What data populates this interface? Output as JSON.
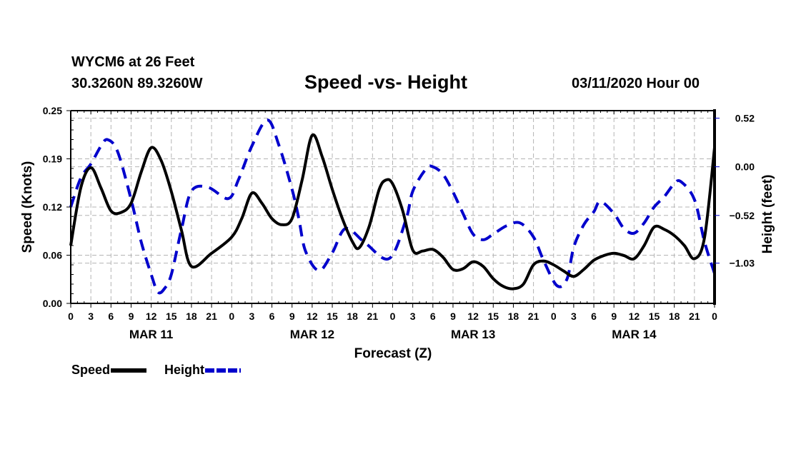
{
  "header": {
    "station": "WYCM6 at 26 Feet",
    "coords": "30.3260N 89.3260W",
    "title": "Speed -vs- Height",
    "datestamp": "03/11/2020 Hour 00"
  },
  "colors": {
    "speed": "#000000",
    "height": "#0000cc",
    "grid": "#b4b4b4"
  },
  "chart_data": {
    "type": "line",
    "title": "Speed -vs- Height",
    "xlabel": "Forecast (Z)",
    "ylabel": "Speed (Knots)",
    "y2label": "Height (feet)",
    "x_unit": "forecast hours from 03/11/2020 00Z",
    "xlim": [
      0,
      96
    ],
    "ylim": [
      0,
      0.25
    ],
    "y2lim": [
      -1.46,
      0.6
    ],
    "grid": true,
    "legend_position": "bottom-left",
    "x_tick_labels": [
      "0",
      "3",
      "6",
      "9",
      "12",
      "15",
      "18",
      "21",
      "0",
      "3",
      "6",
      "9",
      "12",
      "15",
      "18",
      "21",
      "0",
      "3",
      "6",
      "9",
      "12",
      "15",
      "18",
      "21",
      "0",
      "3",
      "6",
      "9",
      "12",
      "15",
      "18",
      "21",
      "0"
    ],
    "x_day_labels": [
      {
        "label": "MAR 11",
        "hour": 12
      },
      {
        "label": "MAR 12",
        "hour": 36
      },
      {
        "label": "MAR 13",
        "hour": 60
      },
      {
        "label": "MAR 14",
        "hour": 84
      }
    ],
    "y_ticks": [
      {
        "value": 0,
        "label": "0.00"
      },
      {
        "value": 0.0625,
        "label": "0.06"
      },
      {
        "value": 0.125,
        "label": "0.12"
      },
      {
        "value": 0.1875,
        "label": "0.19"
      },
      {
        "value": 0.25,
        "label": "0.25"
      }
    ],
    "y2_ticks": [
      {
        "value": 0.52,
        "label": "0.52"
      },
      {
        "value": 0.0,
        "label": "0.00"
      },
      {
        "value": -0.52,
        "label": "−0.52"
      },
      {
        "value": -1.03,
        "label": "−1.03"
      }
    ],
    "series": [
      {
        "name": "Speed",
        "axis": "left",
        "style": "solid",
        "x": [
          0,
          1.5,
          3,
          4.5,
          6,
          7.5,
          9,
          10.5,
          12,
          13.5,
          15,
          16.5,
          18,
          21,
          24,
          25.5,
          27,
          28.5,
          30,
          31.5,
          33,
          34.5,
          36,
          37.5,
          39,
          40.5,
          42,
          43,
          44.5,
          46,
          47,
          48,
          49.5,
          51,
          52.5,
          54,
          55.5,
          57,
          58.5,
          60,
          61.5,
          63,
          64.5,
          66,
          67.5,
          69,
          70.5,
          72,
          73.5,
          75,
          76.5,
          78,
          79.5,
          81,
          82.5,
          84,
          85.5,
          87,
          88.5,
          90,
          91.5,
          93,
          94.5,
          96
        ],
        "values": [
          0.075,
          0.15,
          0.176,
          0.15,
          0.12,
          0.118,
          0.13,
          0.17,
          0.202,
          0.185,
          0.145,
          0.095,
          0.048,
          0.065,
          0.086,
          0.11,
          0.143,
          0.13,
          0.11,
          0.102,
          0.11,
          0.16,
          0.218,
          0.19,
          0.148,
          0.11,
          0.08,
          0.072,
          0.1,
          0.148,
          0.16,
          0.155,
          0.12,
          0.069,
          0.068,
          0.07,
          0.06,
          0.044,
          0.045,
          0.054,
          0.048,
          0.032,
          0.022,
          0.019,
          0.025,
          0.05,
          0.055,
          0.05,
          0.042,
          0.035,
          0.044,
          0.056,
          0.062,
          0.065,
          0.062,
          0.058,
          0.075,
          0.099,
          0.096,
          0.088,
          0.075,
          0.058,
          0.085,
          0.202
        ]
      },
      {
        "name": "Height",
        "axis": "right",
        "style": "dashed",
        "x": [
          0,
          1.5,
          3,
          4.5,
          5.5,
          7,
          9,
          10.5,
          12,
          13,
          14,
          15,
          16.5,
          18,
          20.5,
          23.5,
          25,
          27,
          29.3,
          31,
          33,
          34,
          35,
          37,
          39,
          41,
          44,
          47.5,
          50,
          51,
          53,
          54,
          55.5,
          57,
          58.5,
          60,
          61.5,
          63,
          65,
          67,
          69,
          70.5,
          72.5,
          74,
          75,
          76.5,
          78,
          79,
          81,
          82.5,
          84,
          85.5,
          87,
          88.5,
          90,
          91,
          93,
          94.5,
          96
        ],
        "values": [
          -0.43,
          -0.12,
          0.03,
          0.22,
          0.29,
          0.16,
          -0.35,
          -0.8,
          -1.15,
          -1.34,
          -1.3,
          -1.15,
          -0.67,
          -0.26,
          -0.22,
          -0.34,
          -0.14,
          0.22,
          0.5,
          0.24,
          -0.24,
          -0.55,
          -0.9,
          -1.11,
          -0.92,
          -0.66,
          -0.82,
          -0.98,
          -0.56,
          -0.26,
          -0.02,
          0.0,
          -0.08,
          -0.27,
          -0.5,
          -0.72,
          -0.78,
          -0.72,
          -0.63,
          -0.6,
          -0.75,
          -1.0,
          -1.27,
          -1.2,
          -0.86,
          -0.62,
          -0.48,
          -0.37,
          -0.5,
          -0.66,
          -0.71,
          -0.6,
          -0.43,
          -0.32,
          -0.18,
          -0.16,
          -0.35,
          -0.8,
          -1.14
        ]
      }
    ]
  }
}
